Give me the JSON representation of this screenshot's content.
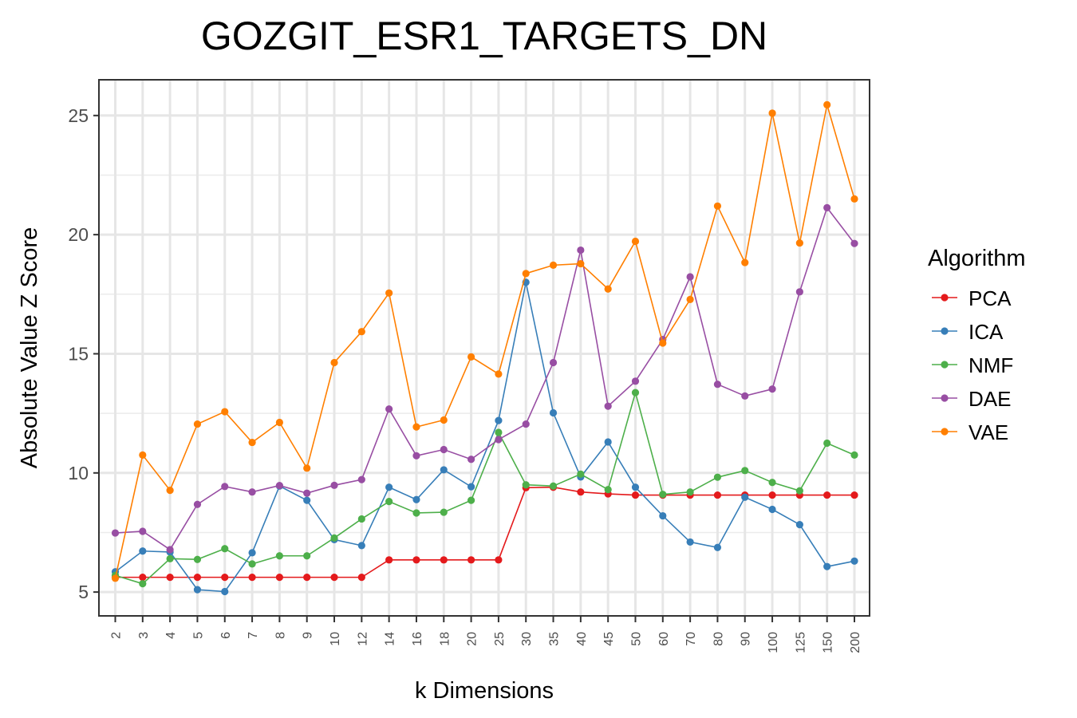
{
  "chart_data": {
    "type": "line",
    "title": "GOZGIT_ESR1_TARGETS_DN",
    "xlabel": "k Dimensions",
    "ylabel": "Absolute Value Z Score",
    "x_categories": [
      "2",
      "3",
      "4",
      "5",
      "6",
      "7",
      "8",
      "9",
      "10",
      "12",
      "14",
      "16",
      "18",
      "20",
      "25",
      "30",
      "35",
      "40",
      "45",
      "50",
      "60",
      "70",
      "80",
      "90",
      "100",
      "125",
      "150",
      "200"
    ],
    "y_ticks": [
      5,
      10,
      15,
      20,
      25
    ],
    "ylim": [
      4.0,
      26.5
    ],
    "grid": true,
    "legend_title": "Algorithm",
    "legend_position": "right",
    "series": [
      {
        "name": "PCA",
        "color": "#E41A1C",
        "values": [
          5.62,
          5.62,
          5.62,
          5.62,
          5.62,
          5.62,
          5.62,
          5.62,
          5.62,
          5.62,
          6.35,
          6.35,
          6.35,
          6.35,
          6.35,
          9.38,
          9.4,
          9.2,
          9.12,
          9.07,
          9.07,
          9.07,
          9.07,
          9.07,
          9.07,
          9.07,
          9.07,
          9.07
        ]
      },
      {
        "name": "ICA",
        "color": "#377EB8",
        "values": [
          5.85,
          6.72,
          6.68,
          5.1,
          5.02,
          6.65,
          9.45,
          8.85,
          7.2,
          6.95,
          9.4,
          8.88,
          10.13,
          9.42,
          12.2,
          18.0,
          12.52,
          9.83,
          11.3,
          9.4,
          8.2,
          7.1,
          6.87,
          8.98,
          8.47,
          7.83,
          6.07,
          6.3
        ]
      },
      {
        "name": "NMF",
        "color": "#4DAF4A",
        "values": [
          5.7,
          5.35,
          6.4,
          6.37,
          6.82,
          6.18,
          6.52,
          6.52,
          7.27,
          8.07,
          8.8,
          8.32,
          8.35,
          8.85,
          11.7,
          9.5,
          9.45,
          9.95,
          9.3,
          13.37,
          9.1,
          9.2,
          9.82,
          10.1,
          9.6,
          9.25,
          11.25,
          10.75
        ]
      },
      {
        "name": "DAE",
        "color": "#984EA3",
        "values": [
          7.48,
          7.55,
          6.78,
          8.68,
          9.43,
          9.2,
          9.47,
          9.15,
          9.48,
          9.72,
          12.68,
          10.72,
          10.98,
          10.57,
          11.4,
          12.05,
          14.63,
          19.35,
          12.8,
          13.85,
          15.6,
          18.23,
          13.72,
          13.23,
          13.52,
          17.6,
          21.13,
          19.63
        ]
      },
      {
        "name": "VAE",
        "color": "#FF7F00",
        "values": [
          5.58,
          10.75,
          9.27,
          12.05,
          12.57,
          11.28,
          12.12,
          10.2,
          14.63,
          15.93,
          17.55,
          11.93,
          12.22,
          14.87,
          14.15,
          18.37,
          18.72,
          18.78,
          17.72,
          19.72,
          15.45,
          17.28,
          21.2,
          18.83,
          25.1,
          19.65,
          25.45,
          21.5
        ]
      }
    ]
  }
}
